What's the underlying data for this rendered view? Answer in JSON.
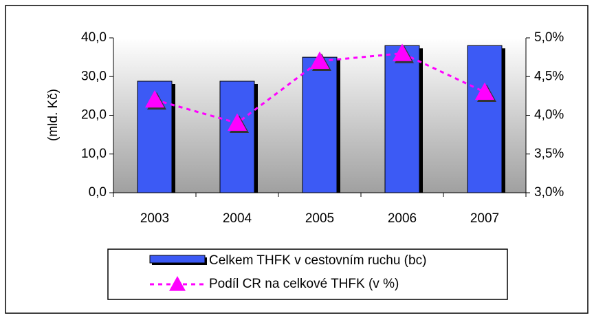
{
  "chart_data": {
    "type": "bar-line",
    "categories": [
      "2003",
      "2004",
      "2005",
      "2006",
      "2007"
    ],
    "y_label": "(mld. Kč)",
    "series": [
      {
        "name": "Celkem THFK v cestovním ruchu (bc)",
        "color": "#3c5af5",
        "values": [
          28.8,
          28.8,
          35.0,
          38.0,
          38.0
        ]
      },
      {
        "name": "Podíl CR na celkové THFK (v %)",
        "color": "#ff00ff",
        "values": [
          4.2,
          3.9,
          4.7,
          4.8,
          4.3
        ],
        "axis": "y2"
      }
    ],
    "ylim": [
      0,
      40
    ],
    "yticks": [
      {
        "value": 0,
        "label": "0,0"
      },
      {
        "value": 10,
        "label": "10,0"
      },
      {
        "value": 20,
        "label": "20,0"
      },
      {
        "value": 30,
        "label": "30,0"
      },
      {
        "value": 40,
        "label": "40,0"
      }
    ],
    "y2lim": [
      3,
      5
    ],
    "y2ticks": [
      {
        "value": 3,
        "label": "3,0%"
      },
      {
        "value": 3.5,
        "label": "3,5%"
      },
      {
        "value": 4,
        "label": "4,0%"
      },
      {
        "value": 4.5,
        "label": "4,5%"
      },
      {
        "value": 5,
        "label": "5,0%"
      }
    ]
  }
}
